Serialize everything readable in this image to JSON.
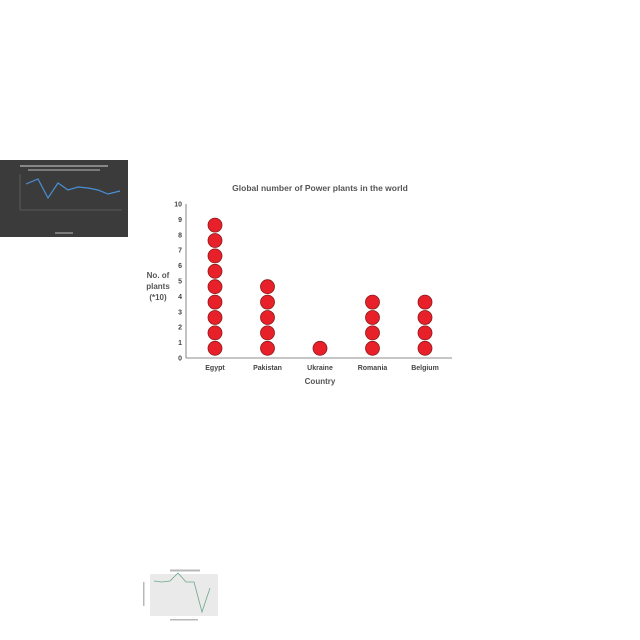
{
  "chart_data": [
    {
      "type": "scatter",
      "title": "Global number of Power plants in the world",
      "xlabel": "Country",
      "ylabel": [
        "No. of",
        "plants",
        "(*10)"
      ],
      "categories": [
        "Egypt",
        "Pakistan",
        "Ukraine",
        "Romania",
        "Belgium"
      ],
      "values": [
        9,
        5,
        1,
        4,
        4
      ],
      "yticks": [
        0,
        1,
        2,
        3,
        4,
        5,
        6,
        7,
        8,
        9,
        10
      ],
      "ylim": [
        0,
        10
      ],
      "marker_color": "#e8202a",
      "marker_edge": "#8b1a1a",
      "grid": false
    }
  ]
}
